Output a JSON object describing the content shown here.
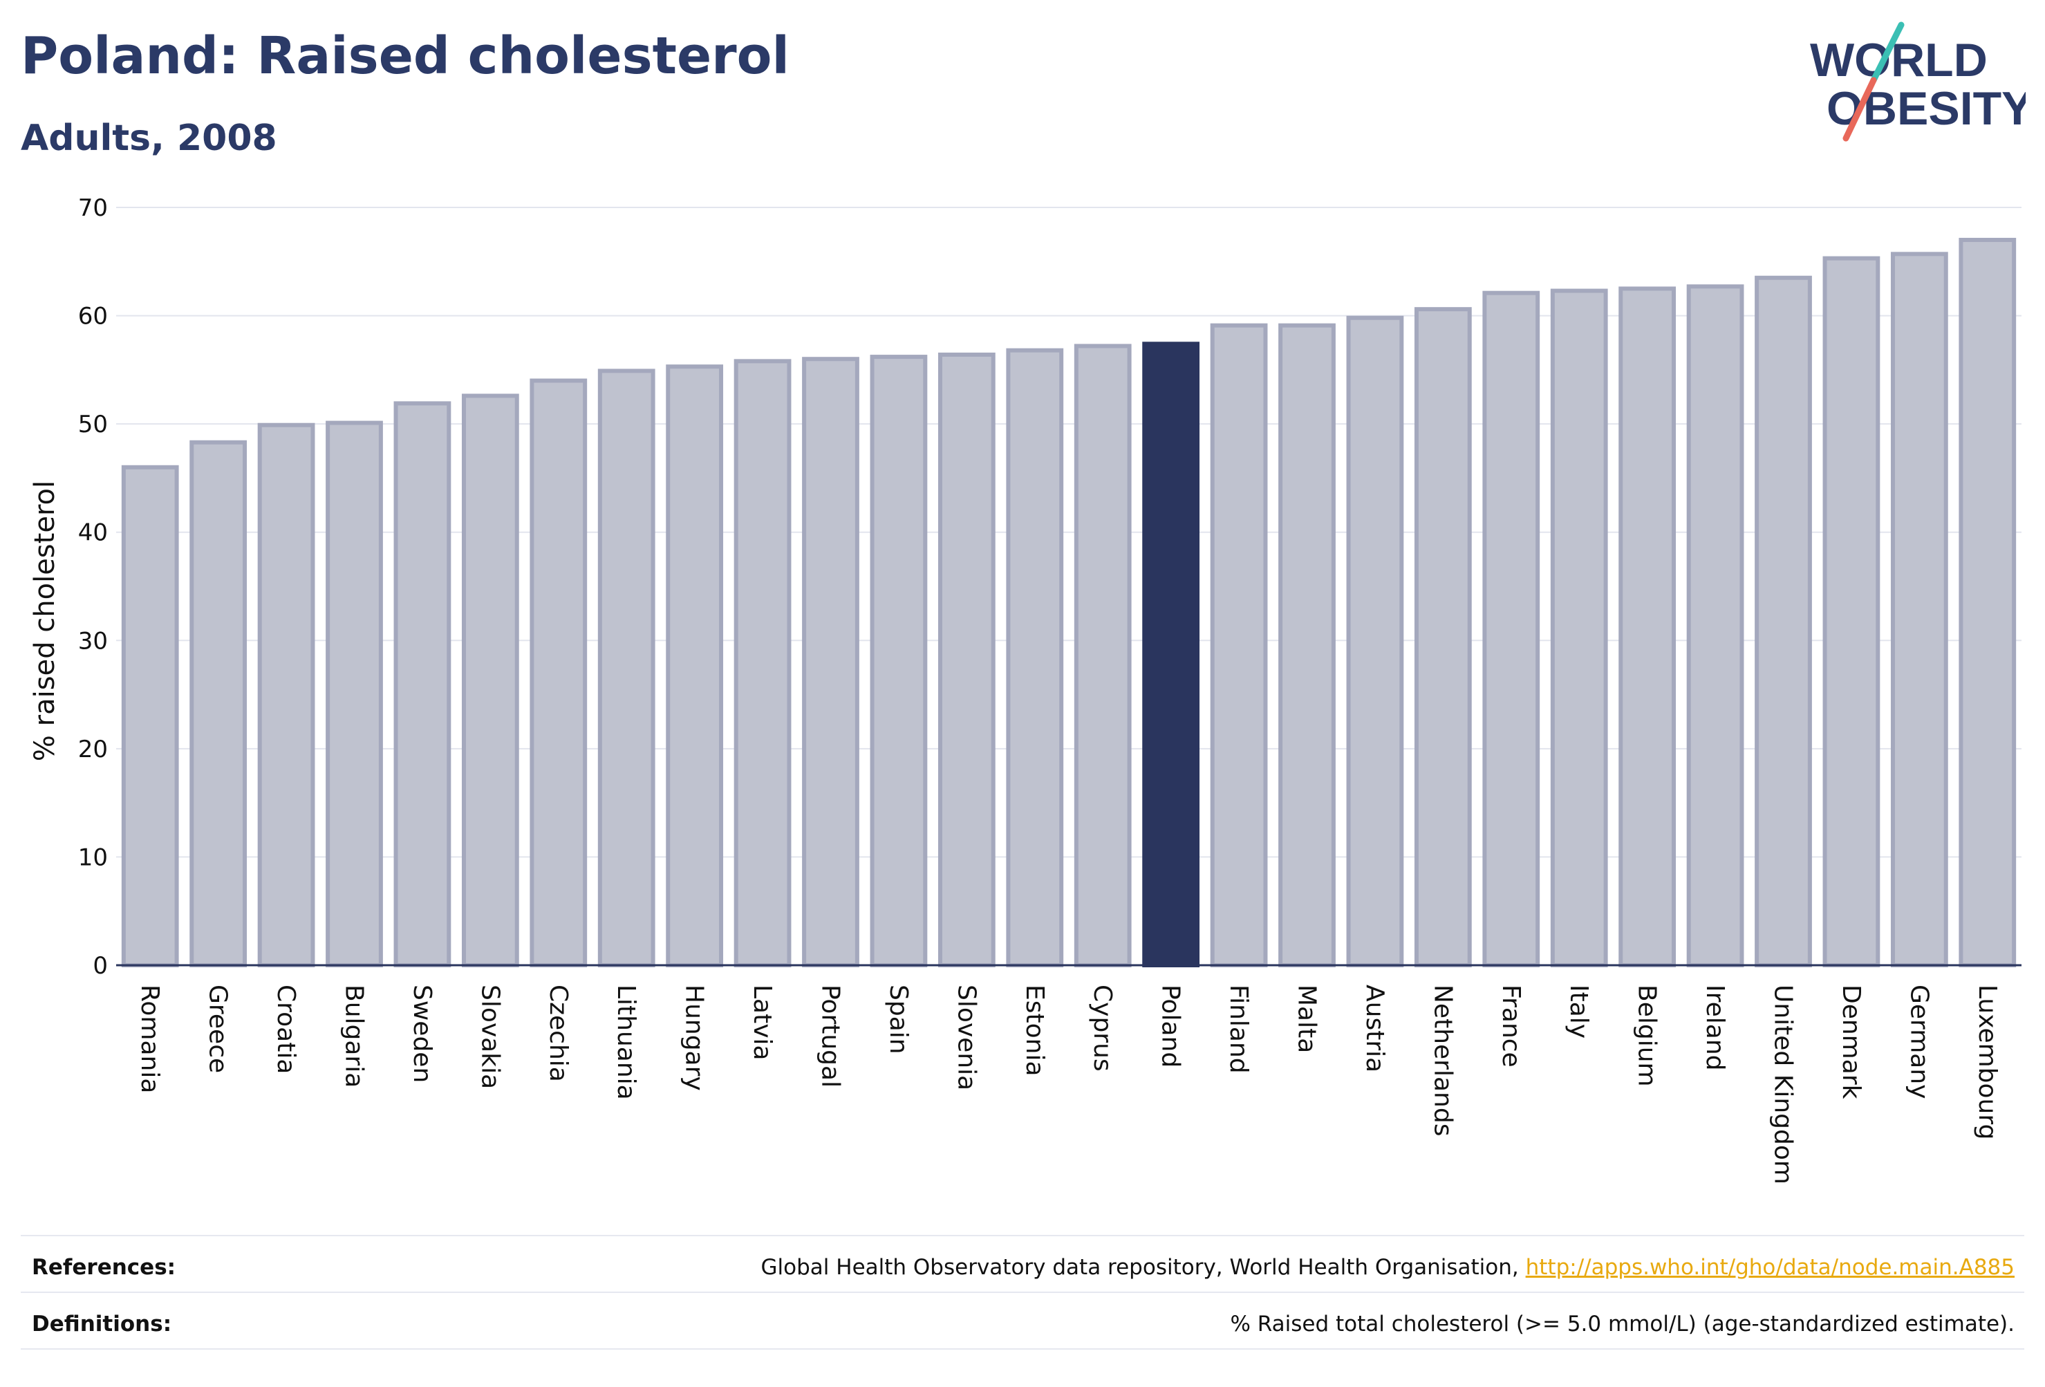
{
  "title": "Poland: Raised cholesterol",
  "subtitle": "Adults, 2008",
  "logo": {
    "line1": "WORLD",
    "line2": "OBESITY"
  },
  "colors": {
    "highlight": "#2a355e",
    "bar": "#bfc2cf",
    "bar_border": "#a4a8bd",
    "axis": "#2a355e",
    "grid": "#e3e5ee",
    "link": "#e8a90f"
  },
  "chart_data": {
    "type": "bar",
    "ylabel": "% raised cholesterol",
    "ylim": [
      0,
      70
    ],
    "yticks": [
      0,
      10,
      20,
      30,
      40,
      50,
      60,
      70
    ],
    "grid": true,
    "highlight": "Poland",
    "categories": [
      "Romania",
      "Greece",
      "Croatia",
      "Bulgaria",
      "Sweden",
      "Slovakia",
      "Czechia",
      "Lithuania",
      "Hungary",
      "Latvia",
      "Portugal",
      "Spain",
      "Slovenia",
      "Estonia",
      "Cyprus",
      "Poland",
      "Finland",
      "Malta",
      "Austria",
      "Netherlands",
      "France",
      "Italy",
      "Belgium",
      "Ireland",
      "United Kingdom",
      "Denmark",
      "Germany",
      "Luxembourg"
    ],
    "values": [
      46.0,
      48.3,
      49.9,
      50.1,
      51.9,
      52.6,
      54.0,
      54.9,
      55.3,
      55.8,
      56.0,
      56.2,
      56.4,
      56.8,
      57.2,
      57.4,
      59.1,
      59.1,
      59.8,
      60.6,
      62.1,
      62.3,
      62.5,
      62.7,
      63.5,
      65.3,
      65.7,
      67.0
    ]
  },
  "footer": {
    "references_label": "References:",
    "references_text": "Global Health Observatory data repository, World Health Organisation, ",
    "references_link": "http://apps.who.int/gho/data/node.main.A885",
    "definitions_label": "Definitions:",
    "definitions_text": "% Raised total cholesterol (>= 5.0 mmol/L) (age-standardized estimate)."
  }
}
